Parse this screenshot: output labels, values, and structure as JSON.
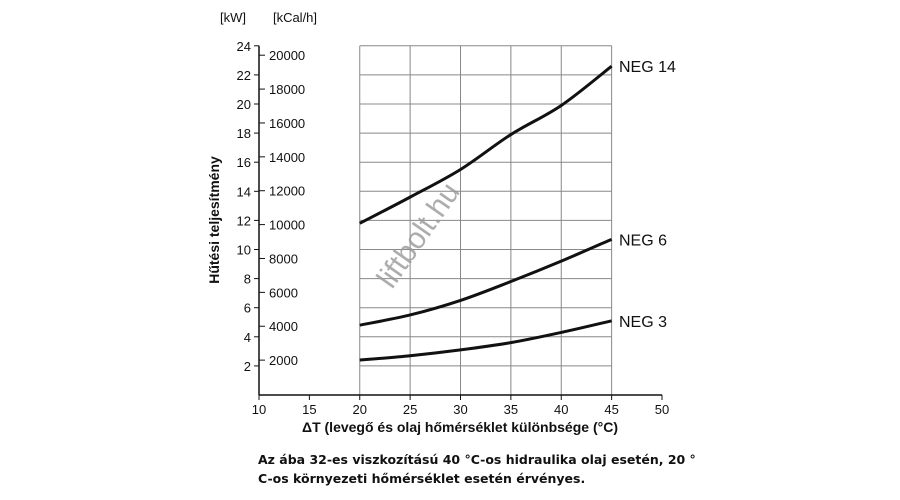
{
  "chart_data": {
    "type": "line",
    "title": "",
    "xlabel": "ΔT (levegő és olaj hőmérséklet különbsége (°C)",
    "ylabel": "Hűtési teljesítmény",
    "y_unit_left": "[kW]",
    "y_unit_right": "[kCal/h]",
    "xlim": [
      10,
      50
    ],
    "ylim": [
      0,
      24
    ],
    "x_ticks": [
      10,
      15,
      20,
      25,
      30,
      35,
      40,
      45,
      50
    ],
    "y_ticks_kw": [
      2,
      4,
      6,
      8,
      10,
      12,
      14,
      16,
      18,
      20,
      22,
      24
    ],
    "y_ticks_kcal": [
      2000,
      4000,
      6000,
      8000,
      10000,
      12000,
      14000,
      16000,
      18000,
      20000
    ],
    "grid": true,
    "x": [
      20,
      25,
      30,
      35,
      40,
      45
    ],
    "series": [
      {
        "name": "NEG 14",
        "values": [
          11.8,
          13.6,
          15.5,
          17.9,
          19.9,
          22.6
        ]
      },
      {
        "name": "NEG 6",
        "values": [
          4.8,
          5.5,
          6.5,
          7.8,
          9.2,
          10.7
        ]
      },
      {
        "name": "NEG 3",
        "values": [
          2.4,
          2.7,
          3.1,
          3.6,
          4.3,
          5.1
        ]
      }
    ],
    "watermark": "liftbolt.hu"
  },
  "note": {
    "line1": "Az ába 32-es viszkozítású 40 °C-os hidraulika olaj esetén, 20 °",
    "line2": "C-os környezeti hőmérséklet esetén érvényes."
  }
}
